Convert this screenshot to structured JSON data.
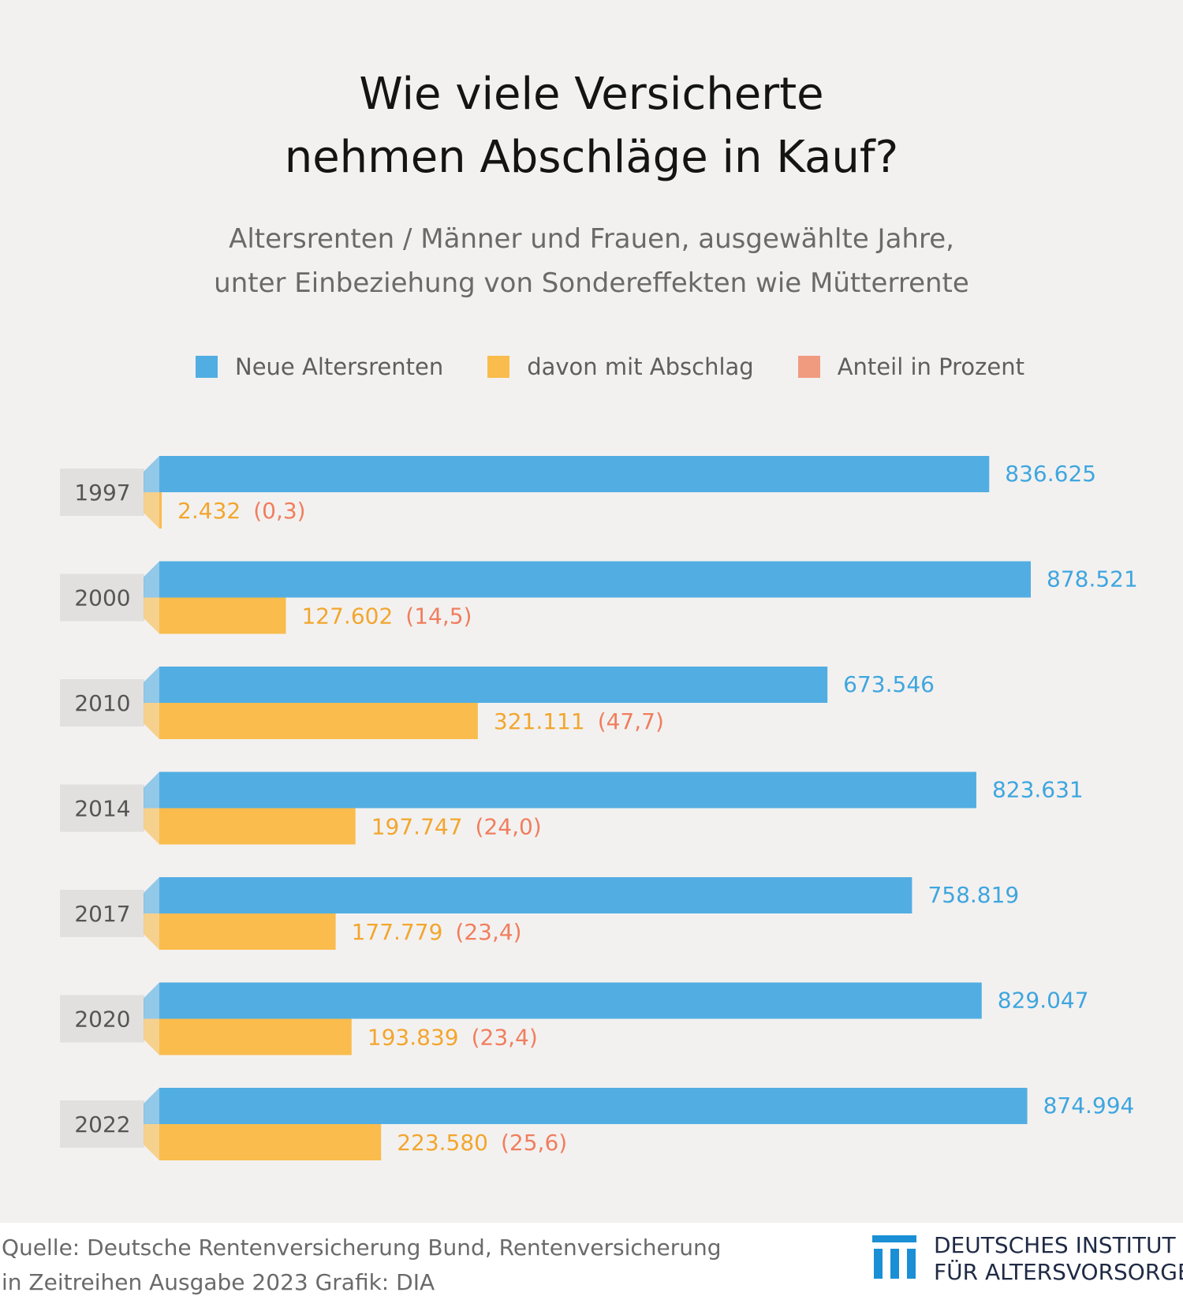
{
  "title_lines": [
    "Wie viele Versicherte",
    "nehmen Abschläge in Kauf?"
  ],
  "subtitle_lines": [
    "Altersrenten / Männer und Frauen, ausgewählte Jahre,",
    "unter Einbeziehung von Sondereffekten wie Mütterrente"
  ],
  "legend": [
    {
      "label": "Neue Altersrenten",
      "color": "#52aee2"
    },
    {
      "label": "davon mit Abschlag",
      "color": "#f9bc4d"
    },
    {
      "label": "Anteil in Prozent",
      "color": "#f09b80"
    }
  ],
  "colors": {
    "blue": "#52aee2",
    "orange": "#f9bc4d",
    "percent": "#f07e5e",
    "blue_label": "#3ea6df",
    "orange_label": "#f2a62e",
    "year_box": "#e2e0de",
    "year_text": "#555555"
  },
  "chart_data": {
    "type": "bar",
    "orientation": "horizontal",
    "categories": [
      "1997",
      "2000",
      "2010",
      "2014",
      "2017",
      "2020",
      "2022"
    ],
    "series": [
      {
        "name": "Neue Altersrenten",
        "values": [
          836625,
          878521,
          673546,
          823631,
          758819,
          829047,
          874994
        ],
        "labels": [
          "836.625",
          "878.521",
          "673.546",
          "823.631",
          "758.819",
          "829.047",
          "874.994"
        ]
      },
      {
        "name": "davon mit Abschlag",
        "values": [
          2432,
          127602,
          321111,
          197747,
          177779,
          193839,
          223580
        ],
        "labels": [
          "2.432",
          "127.602",
          "321.111",
          "197.747",
          "177.779",
          "193.839",
          "223.580"
        ]
      },
      {
        "name": "Anteil in Prozent",
        "values": [
          0.3,
          14.5,
          47.7,
          24.0,
          23.4,
          23.4,
          25.6
        ],
        "labels": [
          "(0,3)",
          "(14,5)",
          "(47,7)",
          "(24,0)",
          "(23,4)",
          "(23,4)",
          "(25,6)"
        ]
      }
    ]
  },
  "footer": {
    "source_lines": [
      "Quelle: Deutsche Rentenversicherung Bund, Rentenversicherung",
      "in Zeitreihen Ausgabe 2023  Grafik: DIA"
    ],
    "logo_lines": [
      "DEUTSCHES INSTITUT",
      "FÜR ALTERSVORSORGE"
    ],
    "logo_color": "#1a8fd6"
  }
}
